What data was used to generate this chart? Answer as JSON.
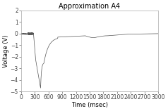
{
  "title": "Approximation A4",
  "xlabel": "Time (msec)",
  "ylabel": "Voltage (V)",
  "xlim": [
    0,
    3000
  ],
  "ylim": [
    -5.0,
    2.0
  ],
  "xticks": [
    0,
    300,
    600,
    900,
    1200,
    1500,
    1800,
    2100,
    2400,
    2700,
    3000
  ],
  "yticks": [
    -5.0,
    -4.0,
    -3.0,
    -2.0,
    -1.0,
    0.0,
    1.0,
    2.0
  ],
  "line_color": "#555555",
  "background_color": "#ffffff",
  "title_fontsize": 7,
  "label_fontsize": 6,
  "tick_fontsize": 5.5
}
